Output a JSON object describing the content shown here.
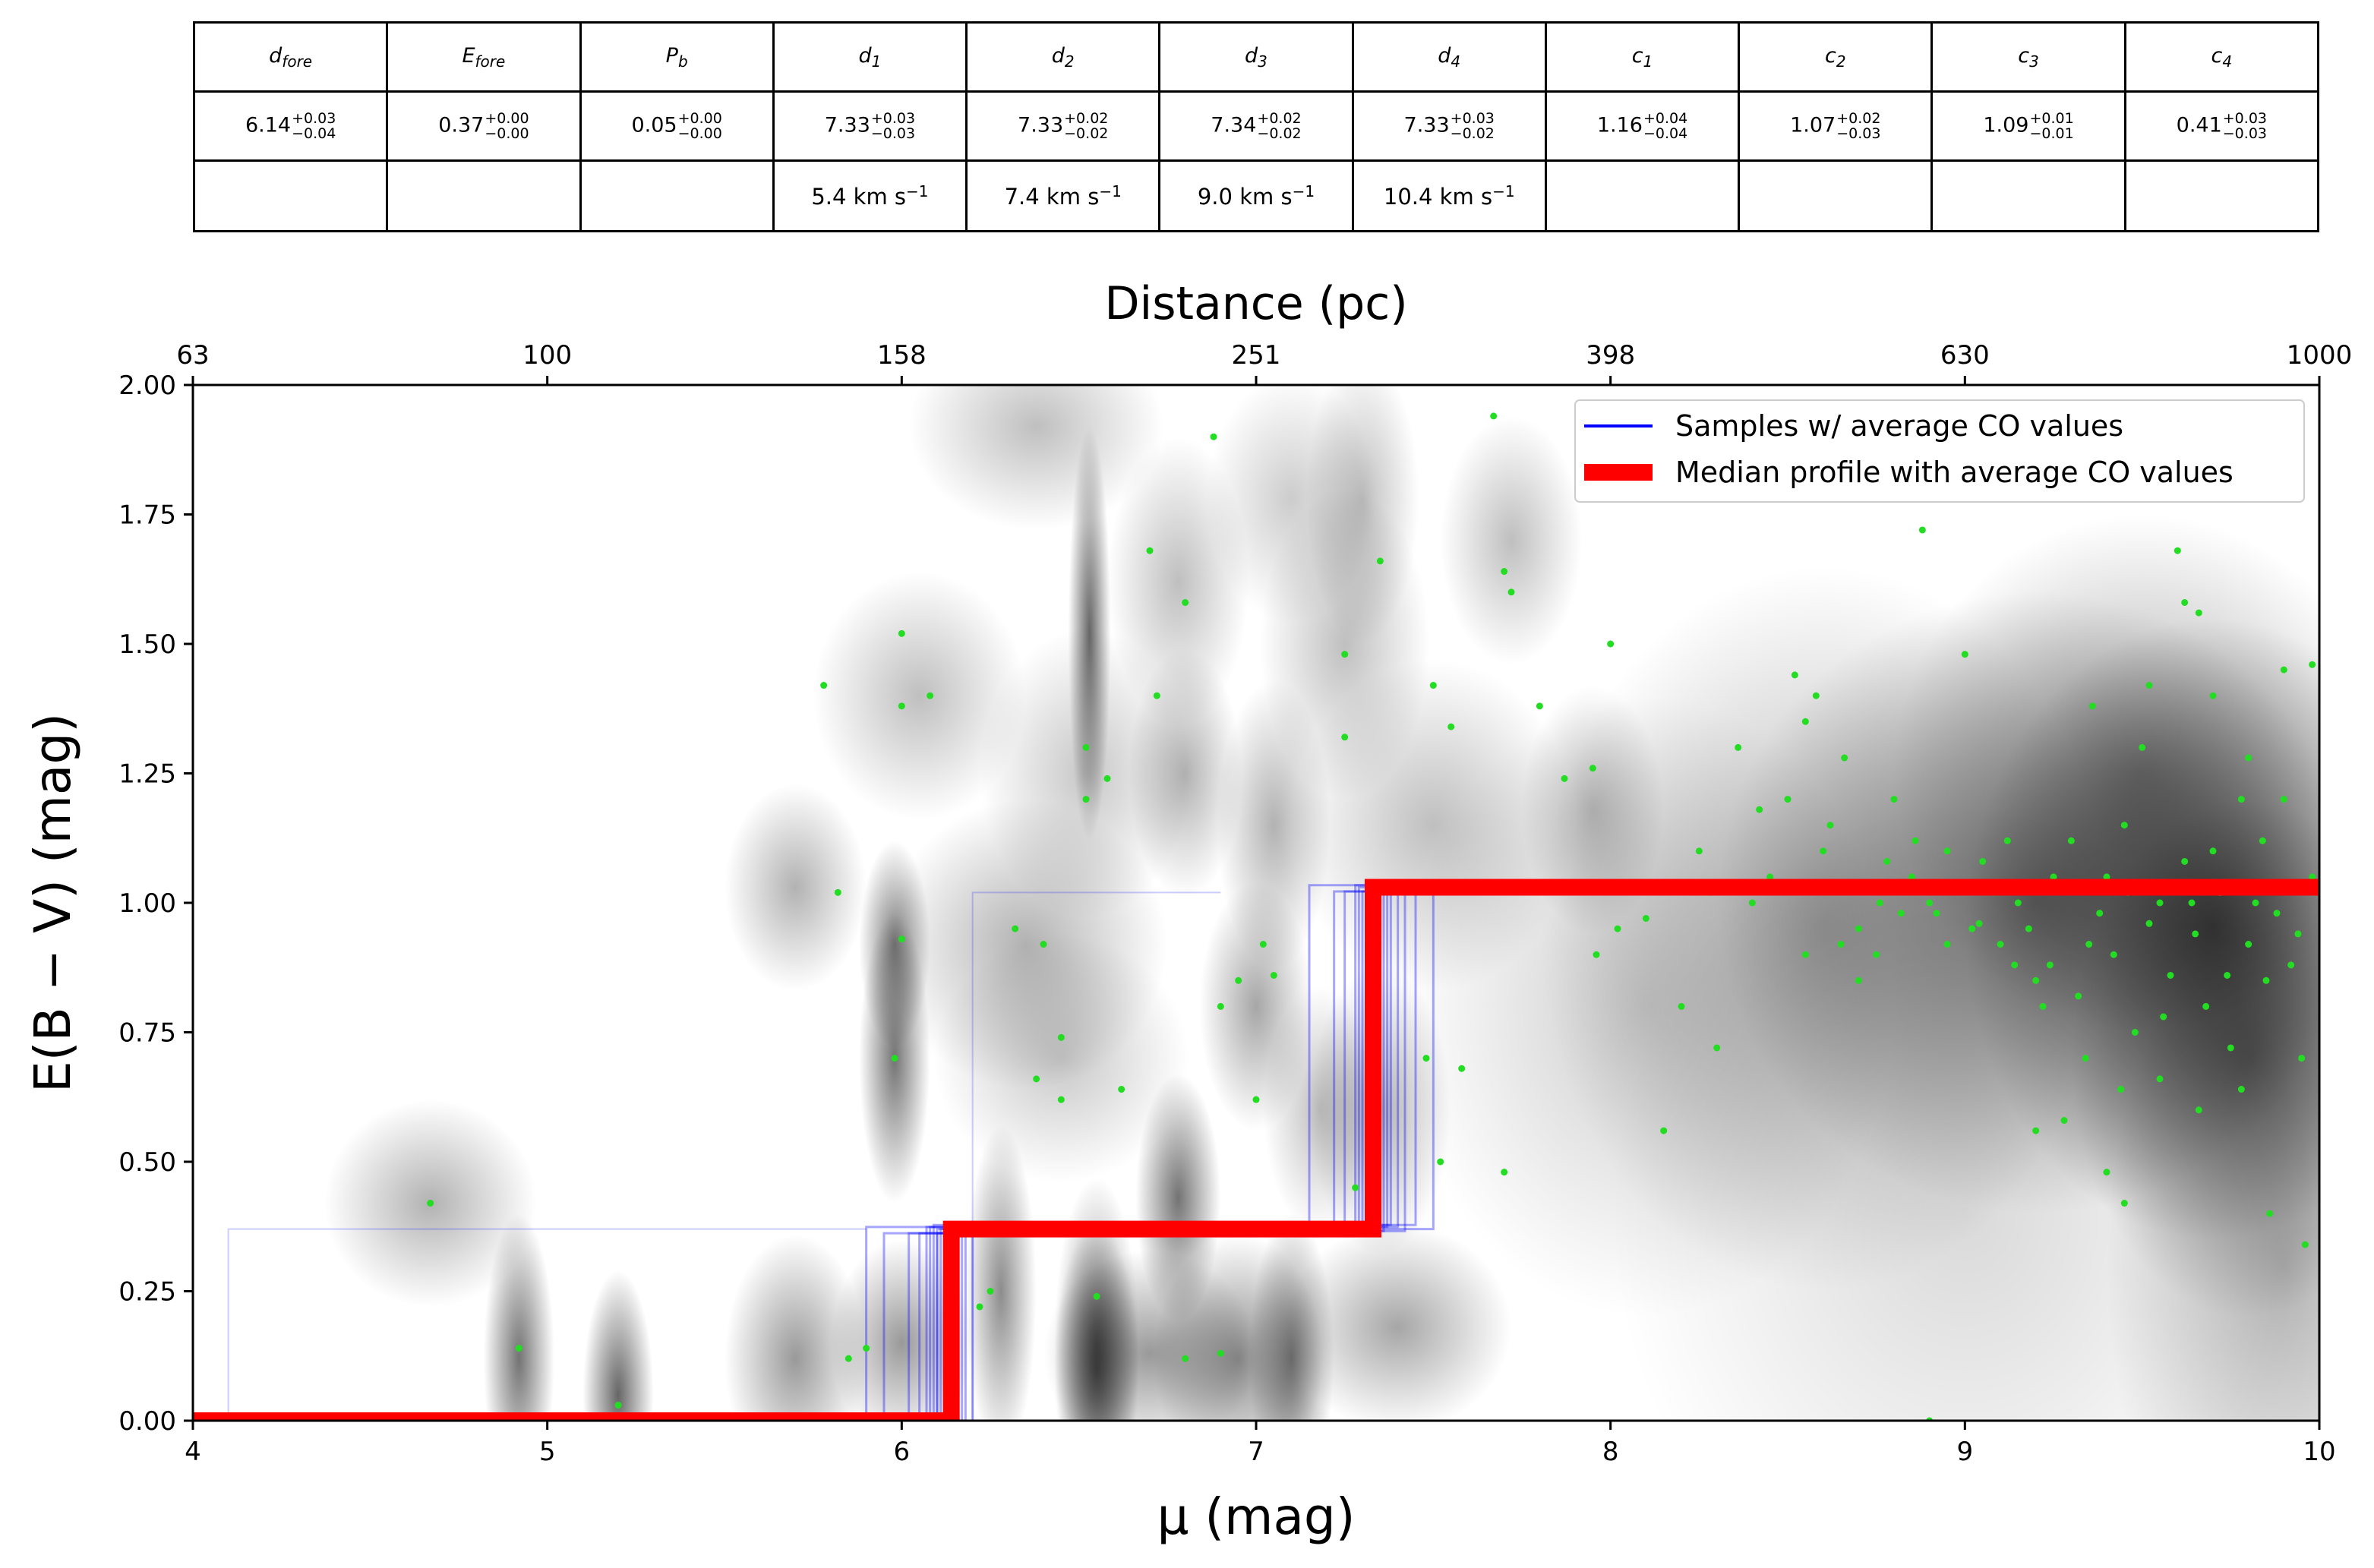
{
  "parameter_table": {
    "columns": [
      {
        "symbol": "d",
        "sub": "fore",
        "value": "6.14",
        "plus": "+0.03",
        "minus": "−0.04",
        "velocity": ""
      },
      {
        "symbol": "E",
        "sub": "fore",
        "value": "0.37",
        "plus": "+0.00",
        "minus": "−0.00",
        "velocity": ""
      },
      {
        "symbol": "P",
        "sub": "b",
        "value": "0.05",
        "plus": "+0.00",
        "minus": "−0.00",
        "velocity": ""
      },
      {
        "symbol": "d",
        "sub": "1",
        "value": "7.33",
        "plus": "+0.03",
        "minus": "−0.03",
        "velocity": "5.4 km s",
        "vunit": "−1"
      },
      {
        "symbol": "d",
        "sub": "2",
        "value": "7.33",
        "plus": "+0.02",
        "minus": "−0.02",
        "velocity": "7.4 km s",
        "vunit": "−1"
      },
      {
        "symbol": "d",
        "sub": "3",
        "value": "7.34",
        "plus": "+0.02",
        "minus": "−0.02",
        "velocity": "9.0 km s",
        "vunit": "−1"
      },
      {
        "symbol": "d",
        "sub": "4",
        "value": "7.33",
        "plus": "+0.03",
        "minus": "−0.02",
        "velocity": "10.4 km s",
        "vunit": "−1"
      },
      {
        "symbol": "c",
        "sub": "1",
        "value": "1.16",
        "plus": "+0.04",
        "minus": "−0.04",
        "velocity": ""
      },
      {
        "symbol": "c",
        "sub": "2",
        "value": "1.07",
        "plus": "+0.02",
        "minus": "−0.03",
        "velocity": ""
      },
      {
        "symbol": "c",
        "sub": "3",
        "value": "1.09",
        "plus": "+0.01",
        "minus": "−0.01",
        "velocity": ""
      },
      {
        "symbol": "c",
        "sub": "4",
        "value": "0.41",
        "plus": "+0.03",
        "minus": "−0.03",
        "velocity": ""
      }
    ]
  },
  "chart_data": {
    "type": "line",
    "xlabel": "μ (mag)",
    "ylabel": "E(B − V) (mag)",
    "top_xlabel": "Distance (pc)",
    "xlim": [
      4,
      10
    ],
    "ylim": [
      0,
      2
    ],
    "x_ticks": [
      4,
      5,
      6,
      7,
      8,
      9,
      10
    ],
    "x_tick_labels": [
      "4",
      "5",
      "6",
      "7",
      "8",
      "9",
      "10"
    ],
    "y_ticks": [
      0,
      0.25,
      0.5,
      0.75,
      1.0,
      1.25,
      1.5,
      1.75,
      2.0
    ],
    "y_tick_labels": [
      "0.00",
      "0.25",
      "0.50",
      "0.75",
      "1.00",
      "1.25",
      "1.50",
      "1.75",
      "2.00"
    ],
    "top_ticks_mu": [
      4,
      5,
      6,
      7,
      8,
      9,
      10
    ],
    "top_tick_labels": [
      "63",
      "100",
      "158",
      "251",
      "398",
      "630",
      "1000"
    ],
    "legend": {
      "placement": "top-right",
      "entries": [
        {
          "label": "Samples  w/ average CO values",
          "color": "#0000ff"
        },
        {
          "label": "Median profile with average CO values",
          "color": "#ff0000"
        }
      ]
    },
    "colors": {
      "samples": "#0000ff",
      "median": "#ff0000",
      "stars": "#22dd22",
      "density": "#000000"
    },
    "series": [
      {
        "name": "Median profile with average CO values",
        "x": [
          4.0,
          6.14,
          6.14,
          7.33,
          7.33,
          10.0
        ],
        "y": [
          0.0,
          0.0,
          0.37,
          0.37,
          1.03,
          1.03
        ]
      }
    ],
    "samples_steps": [
      [
        6.1,
        7.31
      ],
      [
        6.12,
        7.33
      ],
      [
        6.15,
        7.35
      ],
      [
        6.08,
        7.28
      ],
      [
        6.18,
        7.38
      ],
      [
        6.05,
        7.3
      ],
      [
        6.13,
        7.36
      ],
      [
        6.11,
        7.32
      ],
      [
        6.16,
        7.4
      ],
      [
        6.09,
        7.34
      ],
      [
        5.95,
        7.25
      ],
      [
        6.2,
        7.42
      ],
      [
        6.14,
        7.29
      ],
      [
        6.07,
        7.37
      ],
      [
        6.12,
        7.45
      ],
      [
        6.02,
        7.22
      ],
      [
        6.17,
        7.33
      ],
      [
        6.1,
        7.5
      ],
      [
        5.9,
        7.15
      ],
      [
        6.15,
        7.31
      ]
    ],
    "stars": [
      [
        4.67,
        0.42
      ],
      [
        4.92,
        0.14
      ],
      [
        5.2,
        0.03
      ],
      [
        5.78,
        1.42
      ],
      [
        5.82,
        1.02
      ],
      [
        5.85,
        0.12
      ],
      [
        5.9,
        0.14
      ],
      [
        6.0,
        1.52
      ],
      [
        6.0,
        1.38
      ],
      [
        6.08,
        1.4
      ],
      [
        6.0,
        0.93
      ],
      [
        5.98,
        0.7
      ],
      [
        6.22,
        0.22
      ],
      [
        6.25,
        0.25
      ],
      [
        6.32,
        0.95
      ],
      [
        6.4,
        0.92
      ],
      [
        6.45,
        0.74
      ],
      [
        6.38,
        0.66
      ],
      [
        6.45,
        0.62
      ],
      [
        6.52,
        1.3
      ],
      [
        6.52,
        1.2
      ],
      [
        6.58,
        1.24
      ],
      [
        6.62,
        0.64
      ],
      [
        6.55,
        0.24
      ],
      [
        6.7,
        1.68
      ],
      [
        6.72,
        1.4
      ],
      [
        6.8,
        1.58
      ],
      [
        6.88,
        1.9
      ],
      [
        6.8,
        0.12
      ],
      [
        6.9,
        0.13
      ],
      [
        6.95,
        0.85
      ],
      [
        6.9,
        0.8
      ],
      [
        7.05,
        0.86
      ],
      [
        7.0,
        0.62
      ],
      [
        7.02,
        0.92
      ],
      [
        7.25,
        1.48
      ],
      [
        7.25,
        1.32
      ],
      [
        7.28,
        0.45
      ],
      [
        7.35,
        1.66
      ],
      [
        7.48,
        0.7
      ],
      [
        7.5,
        1.42
      ],
      [
        7.55,
        1.34
      ],
      [
        7.52,
        0.5
      ],
      [
        7.58,
        0.68
      ],
      [
        7.67,
        1.94
      ],
      [
        7.7,
        1.64
      ],
      [
        7.72,
        1.6
      ],
      [
        7.7,
        0.48
      ],
      [
        7.8,
        1.38
      ],
      [
        7.87,
        1.24
      ],
      [
        7.95,
        1.26
      ],
      [
        7.96,
        0.9
      ],
      [
        8.0,
        1.5
      ],
      [
        8.02,
        0.95
      ],
      [
        8.1,
        0.97
      ],
      [
        8.15,
        0.56
      ],
      [
        8.2,
        0.8
      ],
      [
        8.3,
        0.72
      ],
      [
        8.4,
        1.0
      ],
      [
        8.45,
        1.05
      ],
      [
        8.5,
        1.2
      ],
      [
        8.55,
        1.35
      ],
      [
        8.58,
        1.4
      ],
      [
        8.6,
        1.1
      ],
      [
        8.65,
        0.92
      ],
      [
        8.7,
        0.85
      ],
      [
        8.75,
        0.9
      ],
      [
        8.8,
        1.2
      ],
      [
        8.85,
        1.05
      ],
      [
        8.88,
        1.72
      ],
      [
        8.9,
        1.0
      ],
      [
        8.92,
        0.98
      ],
      [
        8.95,
        1.1
      ],
      [
        9.0,
        1.48
      ],
      [
        9.02,
        0.95
      ],
      [
        9.05,
        1.08
      ],
      [
        9.1,
        0.92
      ],
      [
        9.15,
        1.0
      ],
      [
        9.2,
        0.85
      ],
      [
        9.22,
        0.8
      ],
      [
        9.25,
        1.05
      ],
      [
        9.28,
        0.58
      ],
      [
        9.3,
        1.12
      ],
      [
        9.35,
        0.92
      ],
      [
        9.38,
        0.98
      ],
      [
        9.4,
        1.05
      ],
      [
        9.45,
        1.15
      ],
      [
        9.48,
        0.75
      ],
      [
        9.5,
        1.3
      ],
      [
        9.52,
        0.96
      ],
      [
        9.55,
        1.0
      ],
      [
        9.58,
        0.86
      ],
      [
        9.6,
        1.68
      ],
      [
        9.62,
        1.08
      ],
      [
        9.65,
        0.94
      ],
      [
        9.68,
        0.8
      ],
      [
        9.7,
        1.1
      ],
      [
        9.72,
        1.02
      ],
      [
        9.75,
        0.72
      ],
      [
        9.78,
        1.2
      ],
      [
        9.8,
        0.92
      ],
      [
        9.82,
        1.0
      ],
      [
        9.85,
        0.85
      ],
      [
        9.88,
        0.98
      ],
      [
        9.9,
        1.45
      ],
      [
        9.92,
        0.88
      ],
      [
        9.95,
        0.7
      ],
      [
        9.98,
        1.05
      ],
      [
        8.55,
        0.9
      ],
      [
        8.62,
        1.15
      ],
      [
        8.7,
        0.95
      ],
      [
        8.78,
        1.08
      ],
      [
        8.82,
        0.98
      ],
      [
        8.95,
        0.92
      ],
      [
        9.08,
        1.02
      ],
      [
        9.12,
        1.12
      ],
      [
        9.18,
        0.95
      ],
      [
        9.32,
        0.82
      ],
      [
        9.42,
        0.9
      ],
      [
        9.46,
        1.02
      ],
      [
        9.56,
        0.78
      ],
      [
        9.64,
        1.0
      ],
      [
        9.74,
        0.86
      ],
      [
        9.84,
        1.12
      ],
      [
        9.94,
        0.94
      ],
      [
        9.66,
        0.6
      ],
      [
        9.78,
        0.64
      ],
      [
        9.86,
        0.4
      ],
      [
        9.96,
        0.34
      ],
      [
        9.55,
        0.66
      ],
      [
        9.44,
        0.64
      ],
      [
        9.34,
        0.7
      ],
      [
        9.24,
        0.88
      ],
      [
        9.14,
        0.88
      ],
      [
        9.04,
        0.96
      ],
      [
        8.86,
        1.12
      ],
      [
        8.76,
        1.0
      ],
      [
        8.66,
        1.28
      ],
      [
        8.52,
        1.44
      ],
      [
        8.42,
        1.18
      ],
      [
        8.36,
        1.3
      ],
      [
        8.28,
        1.02
      ],
      [
        9.36,
        1.38
      ],
      [
        9.52,
        1.42
      ],
      [
        9.7,
        1.4
      ],
      [
        9.8,
        1.28
      ],
      [
        9.9,
        1.2
      ],
      [
        9.98,
        1.46
      ],
      [
        9.62,
        1.58
      ],
      [
        9.66,
        1.56
      ],
      [
        8.25,
        1.1
      ],
      [
        8.9,
        0.0
      ],
      [
        9.45,
        0.42
      ],
      [
        9.4,
        0.48
      ],
      [
        9.2,
        0.56
      ]
    ],
    "density_blobs": [
      [
        4.67,
        0.42,
        0.15,
        0.1,
        0.3
      ],
      [
        4.92,
        0.12,
        0.05,
        0.14,
        0.55
      ],
      [
        5.2,
        0.05,
        0.05,
        0.12,
        0.6
      ],
      [
        5.7,
        1.03,
        0.1,
        0.1,
        0.3
      ],
      [
        5.7,
        0.12,
        0.1,
        0.12,
        0.4
      ],
      [
        5.98,
        0.92,
        0.05,
        0.1,
        0.5
      ],
      [
        5.98,
        0.7,
        0.05,
        0.14,
        0.55
      ],
      [
        6.0,
        0.15,
        0.1,
        0.1,
        0.4
      ],
      [
        6.05,
        1.4,
        0.15,
        0.12,
        0.25
      ],
      [
        6.28,
        0.25,
        0.05,
        0.16,
        0.45
      ],
      [
        6.35,
        0.92,
        0.2,
        0.14,
        0.3
      ],
      [
        6.38,
        1.92,
        0.18,
        0.1,
        0.25
      ],
      [
        6.45,
        0.7,
        0.18,
        0.12,
        0.22
      ],
      [
        6.52,
        1.25,
        0.15,
        0.14,
        0.22
      ],
      [
        6.55,
        0.15,
        0.06,
        0.16,
        0.45
      ],
      [
        6.55,
        0.1,
        0.06,
        0.14,
        0.55
      ],
      [
        6.53,
        1.52,
        0.03,
        0.2,
        0.6
      ],
      [
        6.7,
        0.13,
        0.15,
        0.1,
        0.4
      ],
      [
        6.78,
        0.43,
        0.06,
        0.12,
        0.55
      ],
      [
        6.78,
        1.62,
        0.1,
        0.14,
        0.25
      ],
      [
        6.8,
        1.25,
        0.08,
        0.12,
        0.3
      ],
      [
        6.95,
        0.12,
        0.12,
        0.12,
        0.45
      ],
      [
        7.0,
        0.8,
        0.08,
        0.12,
        0.35
      ],
      [
        7.05,
        1.15,
        0.08,
        0.14,
        0.3
      ],
      [
        7.1,
        1.78,
        0.12,
        0.12,
        0.2
      ],
      [
        7.1,
        0.12,
        0.06,
        0.14,
        0.5
      ],
      [
        7.18,
        0.6,
        0.08,
        0.12,
        0.25
      ],
      [
        7.25,
        1.5,
        0.12,
        0.15,
        0.25
      ],
      [
        7.3,
        1.78,
        0.08,
        0.14,
        0.25
      ],
      [
        7.4,
        0.18,
        0.16,
        0.1,
        0.35
      ],
      [
        7.35,
        0.6,
        0.1,
        0.14,
        0.3
      ],
      [
        7.5,
        1.15,
        0.2,
        0.16,
        0.25
      ],
      [
        7.72,
        1.7,
        0.1,
        0.12,
        0.25
      ],
      [
        7.95,
        1.18,
        0.1,
        0.12,
        0.25
      ],
      [
        8.1,
        0.8,
        0.35,
        0.3,
        0.2
      ],
      [
        8.6,
        0.95,
        0.4,
        0.35,
        0.3
      ],
      [
        9.2,
        1.0,
        0.45,
        0.3,
        0.5
      ],
      [
        9.7,
        0.95,
        0.35,
        0.3,
        0.65
      ],
      [
        9.8,
        0.7,
        0.25,
        0.25,
        0.45
      ],
      [
        9.5,
        1.25,
        0.35,
        0.25,
        0.35
      ],
      [
        9.9,
        0.3,
        0.25,
        0.35,
        0.3
      ],
      [
        9.0,
        0.4,
        0.5,
        0.4,
        0.15
      ]
    ]
  }
}
